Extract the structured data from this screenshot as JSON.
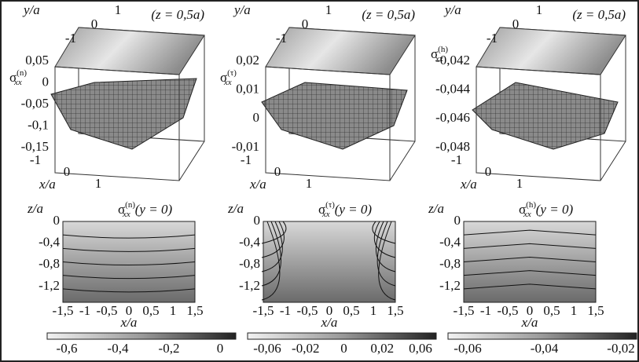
{
  "surfaces": [
    {
      "y_axis": "y/a",
      "x_axis": "x/a",
      "condition": "(z = 0,5a)",
      "sigma": "σ",
      "sub": "xx",
      "sup": "(n)",
      "z_ticks": [
        "0,05",
        "0",
        "-0,05",
        "-0,1",
        "-0,15"
      ],
      "y_ticks": [
        "1",
        "0",
        "-1"
      ],
      "x_ticks": [
        "-1",
        "0",
        "1"
      ]
    },
    {
      "y_axis": "y/a",
      "x_axis": "x/a",
      "condition": "(z = 0,5a)",
      "sigma": "σ",
      "sub": "xx",
      "sup": "(τ)",
      "z_ticks": [
        "0,02",
        "0,01",
        "0",
        "-0,01"
      ],
      "y_ticks": [
        "1",
        "0",
        "-1"
      ],
      "x_ticks": [
        "-1",
        "0",
        "1"
      ]
    },
    {
      "y_axis": "y/a",
      "x_axis": "x/a",
      "condition": "(z = 0,5a)",
      "sigma": "σ",
      "sub": "xx",
      "sup": "(h)",
      "z_ticks": [
        "-0,042",
        "-0,044",
        "-0,046",
        "-0,048"
      ],
      "y_ticks": [
        "1",
        "0",
        "-1"
      ],
      "x_ticks": [
        "-1",
        "0",
        "1"
      ]
    }
  ],
  "contours": [
    {
      "y_label": "z/a",
      "x_label": "x/a",
      "sigma": "σ",
      "sub": "xx",
      "sup": "(n)",
      "condition": "(y = 0)",
      "y_ticks": [
        "0",
        "-0,4",
        "-0,8",
        "-1,2"
      ],
      "x_ticks": [
        "-1,5",
        "-1",
        "-0,5",
        "0",
        "0,5",
        "1",
        "1,5"
      ],
      "colorbar_ticks": [
        "-0,6",
        "-0,4",
        "-0,2",
        "0"
      ]
    },
    {
      "y_label": "z/a",
      "x_label": "x/a",
      "sigma": "σ",
      "sub": "xx",
      "sup": "(τ)",
      "condition": "(y = 0)",
      "y_ticks": [
        "0",
        "-0,4",
        "-0,8",
        "-1,2"
      ],
      "x_ticks": [
        "-1,5",
        "-1",
        "-0,5",
        "0",
        "0,5",
        "1",
        "1,5"
      ],
      "colorbar_ticks": [
        "-0,06",
        "-0,02",
        "0",
        "0,02",
        "0,06"
      ]
    },
    {
      "y_label": "z/a",
      "x_label": "x/a",
      "sigma": "σ",
      "sub": "xx",
      "sup": "(h)",
      "condition": "(y = 0)",
      "y_ticks": [
        "0",
        "-0,4",
        "-0,8",
        "-1,2"
      ],
      "x_ticks": [
        "-1,5",
        "-1",
        "-0,5",
        "0",
        "0,5",
        "1",
        "1,5"
      ],
      "colorbar_ticks": [
        "-0,06",
        "-0,04",
        "-0,02"
      ]
    }
  ]
}
